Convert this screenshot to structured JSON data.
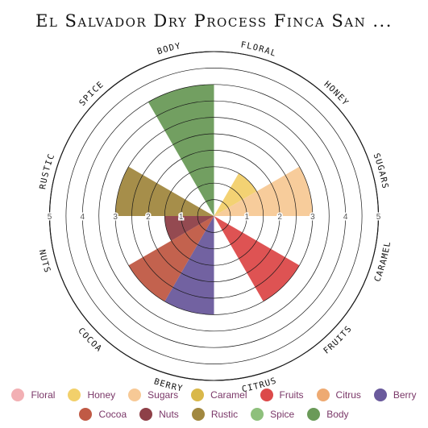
{
  "chart_data": {
    "type": "polar-area",
    "title": "El Salvador Dry Process Finca San ...",
    "rlim": [
      0,
      5
    ],
    "radial_ticks": [
      "1",
      "2",
      "3",
      "4",
      "5"
    ],
    "categories": [
      "Floral",
      "Honey",
      "Sugars",
      "Caramel",
      "Fruits",
      "Citrus",
      "Berry",
      "Cocoa",
      "Nuts",
      "Rustic",
      "Spice",
      "Body"
    ],
    "ring_labels": [
      "FLORAL",
      "HONEY",
      "SUGARS",
      "CARAMEL",
      "FRUITS",
      "CITRUS",
      "BERRY",
      "COCOA",
      "NUTS",
      "RUSTIC",
      "SPICE",
      "BODY"
    ],
    "values": [
      0,
      1.5,
      3,
      0,
      3,
      0,
      3,
      3,
      1.5,
      3,
      0,
      4
    ],
    "colors": [
      "#f2b0b4",
      "#f2d06b",
      "#f7c996",
      "#d9b84a",
      "#dc4a4a",
      "#eeaa72",
      "#6a5a9c",
      "#c05a45",
      "#8e4048",
      "#a18840",
      "#8ec07c",
      "#6a9a58"
    ],
    "legend_placement": "bottom",
    "grid": true
  }
}
